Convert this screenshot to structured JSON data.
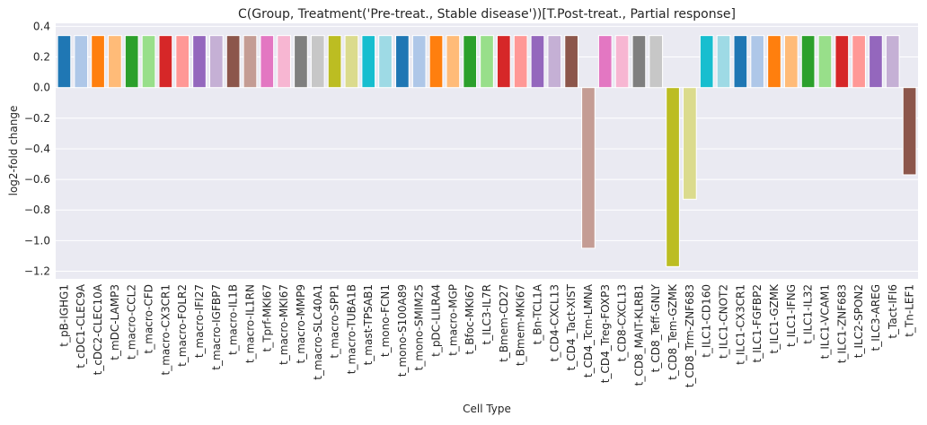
{
  "chart_data": {
    "type": "bar",
    "title": "C(Group, Treatment('Pre-treat., Stable disease'))[T.Post-treat., Partial response]",
    "xlabel": "Cell Type",
    "ylabel": "log2-fold change",
    "ylim": [
      -1.25,
      0.42
    ],
    "yticks": [
      0.4,
      0.2,
      0.0,
      -0.2,
      -0.4,
      -0.6,
      -0.8,
      -1.0,
      -1.2
    ],
    "ytick_labels": [
      "0.4",
      "0.2",
      "0.0",
      "−0.2",
      "−0.4",
      "−0.6",
      "−0.8",
      "−1.0",
      "−1.2"
    ],
    "grid": true,
    "categories": [
      "t_pB-IGHG1",
      "t_cDC1-CLEC9A",
      "t_cDC2-CLEC10A",
      "t_mDC-LAMP3",
      "t_macro-CCL2",
      "t_macro-CFD",
      "t_macro-CX3CR1",
      "t_macro-FOLR2",
      "t_macro-IFI27",
      "t_macro-IGFBP7",
      "t_macro-IL1B",
      "t_macro-IL1RN",
      "t_Tprf-MKI67",
      "t_macro-MKI67",
      "t_macro-MMP9",
      "t_macro-SLC40A1",
      "t_macro-SPP1",
      "t_macro-TUBA1B",
      "t_mast-TPSAB1",
      "t_mono-FCN1",
      "t_mono-S100A89",
      "t_mono-SMIM25",
      "t_pDC-LILRA4",
      "t_macro-MGP",
      "t_Bfoc-MKI67",
      "t_ILC3-IL7R",
      "t_Bmem-CD27",
      "t_Bmem-MKI67",
      "t_Bn-TCL1A",
      "t_CD4-CXCL13",
      "t_CD4_Tact-XIST",
      "t_CD4_Tcm-LMNA",
      "t_CD4_Treg-FOXP3",
      "t_CD8-CXCL13",
      "t_CD8_MAIT-KLRB1",
      "t_CD8_Teff-GNLY",
      "t_CD8_Tem-GZMK",
      "t_CD8_Trm-ZNF683",
      "t_ILC1-CD160",
      "t_ILC1-CNOT2",
      "t_ILC1-CX3CR1",
      "t_ILC1-FGFBP2",
      "t_ILC1-GZMK",
      "t_ILC1-IFNG",
      "t_ILC1-IL32",
      "t_ILC1-VCAM1",
      "t_ILC1-ZNF683",
      "t_ILC2-SPON2",
      "t_ILC3-AREG",
      "t_Tact-IFI6",
      "t_Tn-LEF1"
    ],
    "values": [
      0.34,
      0.34,
      0.34,
      0.34,
      0.34,
      0.34,
      0.34,
      0.34,
      0.34,
      0.34,
      0.34,
      0.34,
      0.34,
      0.34,
      0.34,
      0.34,
      0.34,
      0.34,
      0.34,
      0.34,
      0.34,
      0.34,
      0.34,
      0.34,
      0.34,
      0.34,
      0.34,
      0.34,
      0.34,
      0.34,
      0.34,
      -1.05,
      0.34,
      0.34,
      0.34,
      0.34,
      -1.17,
      -0.73,
      0.34,
      0.34,
      0.34,
      0.34,
      0.34,
      0.34,
      0.34,
      0.34,
      0.34,
      0.34,
      0.34,
      0.34,
      -0.57
    ],
    "colors": [
      "#1f77b4",
      "#aec7e8",
      "#ff7f0e",
      "#ffbb78",
      "#2ca02c",
      "#98df8a",
      "#d62728",
      "#ff9896",
      "#9467bd",
      "#c5b0d5",
      "#8c564b",
      "#c49c94",
      "#e377c2",
      "#f7b6d2",
      "#7f7f7f",
      "#c7c7c7",
      "#bcbd22",
      "#dbdb8d",
      "#17becf",
      "#9edae5",
      "#1f77b4",
      "#aec7e8",
      "#ff7f0e",
      "#ffbb78",
      "#2ca02c",
      "#98df8a",
      "#d62728",
      "#ff9896",
      "#9467bd",
      "#c5b0d5",
      "#8c564b",
      "#c49c94",
      "#e377c2",
      "#f7b6d2",
      "#7f7f7f",
      "#c7c7c7",
      "#bcbd22",
      "#dbdb8d",
      "#17becf",
      "#9edae5",
      "#1f77b4",
      "#aec7e8",
      "#ff7f0e",
      "#ffbb78",
      "#2ca02c",
      "#98df8a",
      "#d62728",
      "#ff9896",
      "#9467bd",
      "#c5b0d5",
      "#8c564b"
    ],
    "background": "#eaeaf2",
    "grid_color": "#ffffff"
  }
}
